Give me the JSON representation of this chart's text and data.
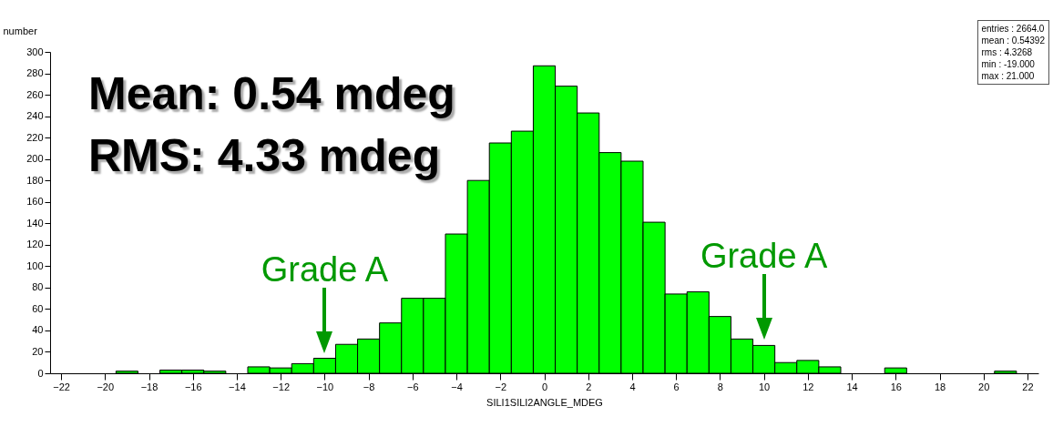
{
  "chart_data": {
    "type": "histogram",
    "xlabel": "SILI1SILI2ANGLE_MDEG",
    "ylabel": "number",
    "bins": [
      -19.5,
      -18.5,
      -17.5,
      -16.5,
      -15.5,
      -14.5,
      -13.5,
      -12.5,
      -11.5,
      -10.5,
      -9.5,
      -8.5,
      -7.5,
      -6.5,
      -5.5,
      -4.5,
      -3.5,
      -2.5,
      -1.5,
      -0.5,
      0.5,
      1.5,
      2.5,
      3.5,
      4.5,
      5.5,
      6.5,
      7.5,
      8.5,
      9.5,
      10.5,
      11.5,
      12.5,
      13.5,
      14.5,
      15.5,
      16.5,
      17.5,
      18.5,
      19.5,
      20.5,
      21.5
    ],
    "values": [
      2,
      0,
      3,
      3,
      2,
      0,
      6,
      5,
      9,
      14,
      27,
      32,
      47,
      70,
      70,
      130,
      180,
      215,
      226,
      287,
      268,
      243,
      206,
      198,
      141,
      74,
      76,
      53,
      32,
      26,
      10,
      12,
      6,
      0,
      0,
      5,
      0,
      0,
      0,
      0,
      2
    ],
    "color": "#00ff00",
    "xlim": [
      -22.5,
      22.5
    ],
    "xticks": [
      -22,
      -20,
      -18,
      -16,
      -14,
      -12,
      -10,
      -8,
      -6,
      -4,
      -2,
      0,
      2,
      4,
      6,
      8,
      10,
      12,
      14,
      16,
      18,
      20,
      22
    ],
    "ylim": [
      0,
      300
    ],
    "yticks": [
      0,
      20,
      40,
      60,
      80,
      100,
      120,
      140,
      160,
      180,
      200,
      220,
      240,
      260,
      280,
      300
    ],
    "grid": false,
    "annotations": [
      "Mean: 0.54 mdeg",
      "RMS: 4.33 mdeg",
      {
        "text": "Grade A",
        "x": -10,
        "y": 14
      },
      {
        "text": "Grade A",
        "x": 10,
        "y": 26
      },
      "entries : 2664.0",
      "mean : 0.54392",
      "rms : 4.3268",
      "min : -19.000",
      "max : 21.000"
    ]
  }
}
